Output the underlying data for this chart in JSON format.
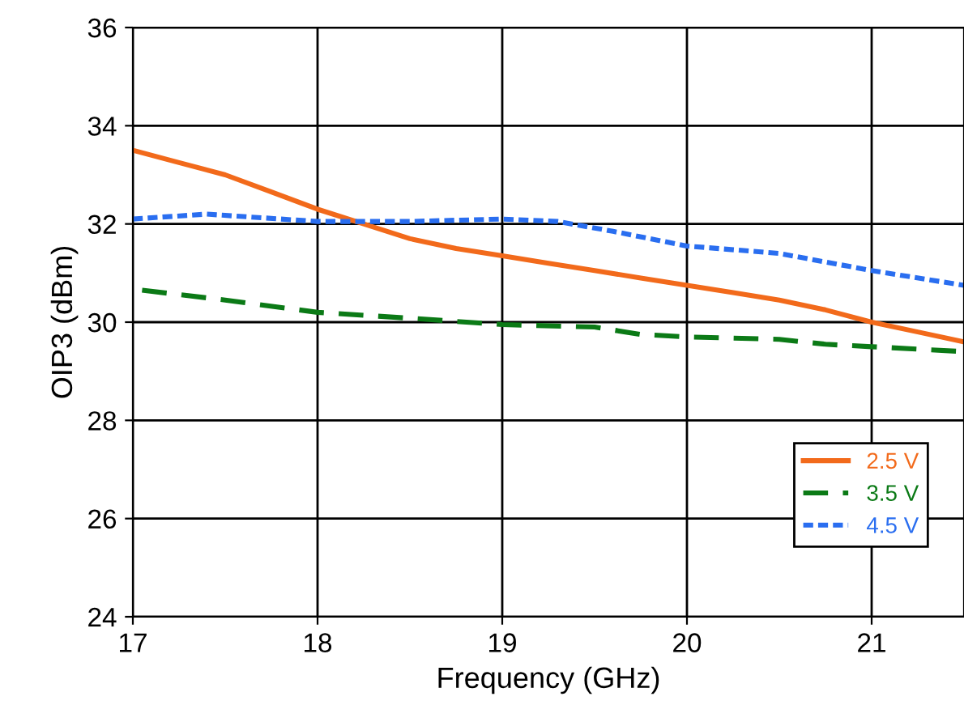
{
  "chart_data": {
    "type": "line",
    "xlabel": "Frequency (GHz)",
    "ylabel": "OIP3 (dBm)",
    "xlim": [
      17,
      21.5
    ],
    "ylim": [
      24,
      36
    ],
    "xticks": [
      17,
      18,
      19,
      20,
      21
    ],
    "yticks": [
      24,
      26,
      28,
      30,
      32,
      34,
      36
    ],
    "grid": true,
    "legend": "bottom right",
    "series": [
      {
        "name": "2.5 V",
        "color": "#f26a1b",
        "line_style": "solid",
        "x": [
          17,
          17.25,
          17.5,
          17.75,
          18,
          18.25,
          18.5,
          18.75,
          19,
          19.25,
          19.5,
          19.75,
          20,
          20.25,
          20.5,
          20.75,
          21,
          21.25,
          21.5
        ],
        "values": [
          33.5,
          33.25,
          33.0,
          32.65,
          32.3,
          32.0,
          31.7,
          31.5,
          31.35,
          31.2,
          31.05,
          30.9,
          30.75,
          30.6,
          30.45,
          30.25,
          30.0,
          29.8,
          29.6
        ]
      },
      {
        "name": "3.5 V",
        "color": "#0b7a16",
        "line_style": "dashed",
        "x": [
          17.05,
          17.5,
          18,
          18.5,
          19,
          19.5,
          19.75,
          20,
          20.5,
          20.75,
          21,
          21.5
        ],
        "values": [
          30.65,
          30.45,
          30.2,
          30.08,
          29.95,
          29.9,
          29.75,
          29.7,
          29.65,
          29.55,
          29.5,
          29.4
        ]
      },
      {
        "name": "4.5 V",
        "color": "#2a6ef0",
        "line_style": "dotted",
        "x": [
          17,
          17.4,
          18,
          18.5,
          19,
          19.3,
          19.6,
          20,
          20.5,
          21,
          21.5
        ],
        "values": [
          32.1,
          32.2,
          32.05,
          32.05,
          32.1,
          32.05,
          31.85,
          31.55,
          31.4,
          31.05,
          30.75
        ]
      }
    ]
  }
}
